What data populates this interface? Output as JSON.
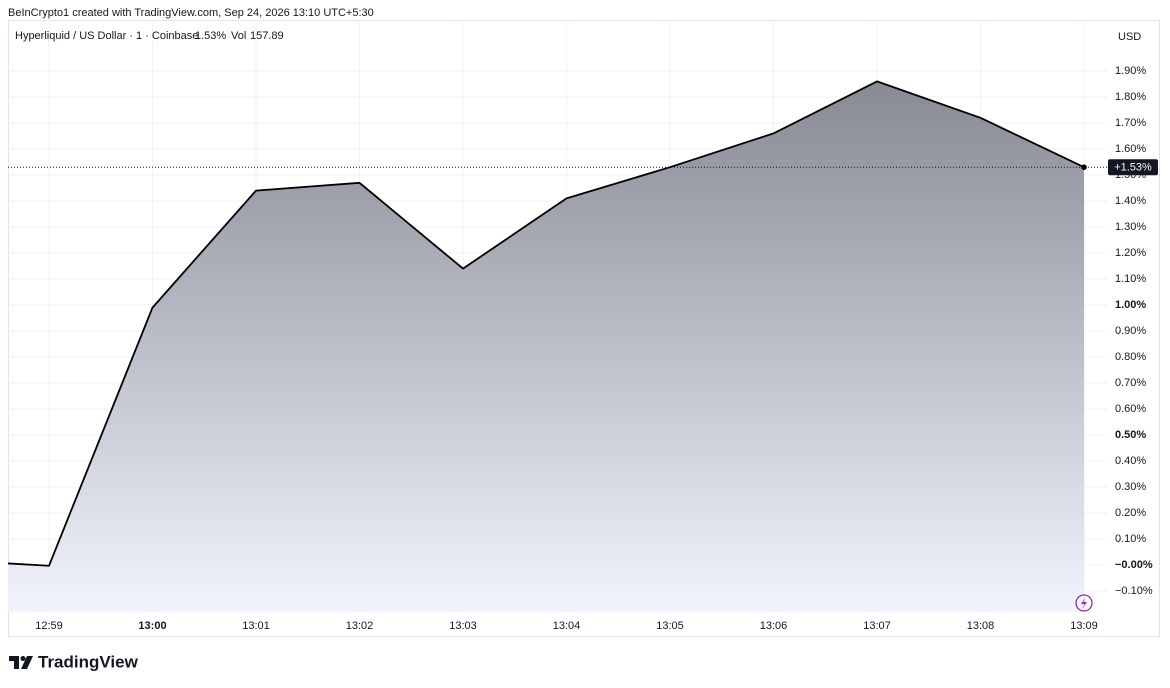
{
  "attribution": "BeInCrypto1 created with TradingView.com, Sep 24, 2026 13:10 UTC+5:30",
  "brand": "TradingView",
  "chart_data": {
    "type": "area",
    "symbol": "Hyperliquid / US Dollar · 1 · Coinbase",
    "change_label": "1.53%",
    "volume_label": "Vol",
    "volume": 157.89,
    "currency": "USD",
    "categories": [
      null,
      "12:59",
      "13:00",
      "13:01",
      "13:02",
      "13:03",
      "13:04",
      "13:05",
      "13:06",
      "13:07",
      "13:08",
      "13:09"
    ],
    "values": [
      0.02,
      -0.003,
      0.99,
      1.44,
      1.47,
      1.14,
      1.41,
      1.53,
      1.66,
      1.86,
      1.72,
      1.53
    ],
    "bold_category": 2,
    "ylim": [
      -0.18,
      2.1
    ],
    "yticks": [
      {
        "value": -0.1,
        "label": "−0.10%"
      },
      {
        "value": 0,
        "label": "−0.00%",
        "bold": true
      },
      {
        "value": 0.1,
        "label": "0.10%"
      },
      {
        "value": 0.2,
        "label": "0.20%"
      },
      {
        "value": 0.3,
        "label": "0.30%"
      },
      {
        "value": 0.4,
        "label": "0.40%"
      },
      {
        "value": 0.5,
        "label": "0.50%",
        "bold": true
      },
      {
        "value": 0.6,
        "label": "0.60%"
      },
      {
        "value": 0.7,
        "label": "0.70%"
      },
      {
        "value": 0.8,
        "label": "0.80%"
      },
      {
        "value": 0.9,
        "label": "0.90%"
      },
      {
        "value": 1.0,
        "label": "1.00%",
        "bold": true
      },
      {
        "value": 1.1,
        "label": "1.10%"
      },
      {
        "value": 1.2,
        "label": "1.20%"
      },
      {
        "value": 1.3,
        "label": "1.30%"
      },
      {
        "value": 1.4,
        "label": "1.40%"
      },
      {
        "value": 1.5,
        "label": "1.50%"
      },
      {
        "value": 1.6,
        "label": "1.60%"
      },
      {
        "value": 1.7,
        "label": "1.70%"
      },
      {
        "value": 1.8,
        "label": "1.80%"
      },
      {
        "value": 1.9,
        "label": "1.90%"
      }
    ],
    "last_value_label": "+1.53%",
    "grid": true,
    "line_color": "#000000",
    "fill_top": "#878a95",
    "fill_bottom": "#f1f3fd"
  }
}
